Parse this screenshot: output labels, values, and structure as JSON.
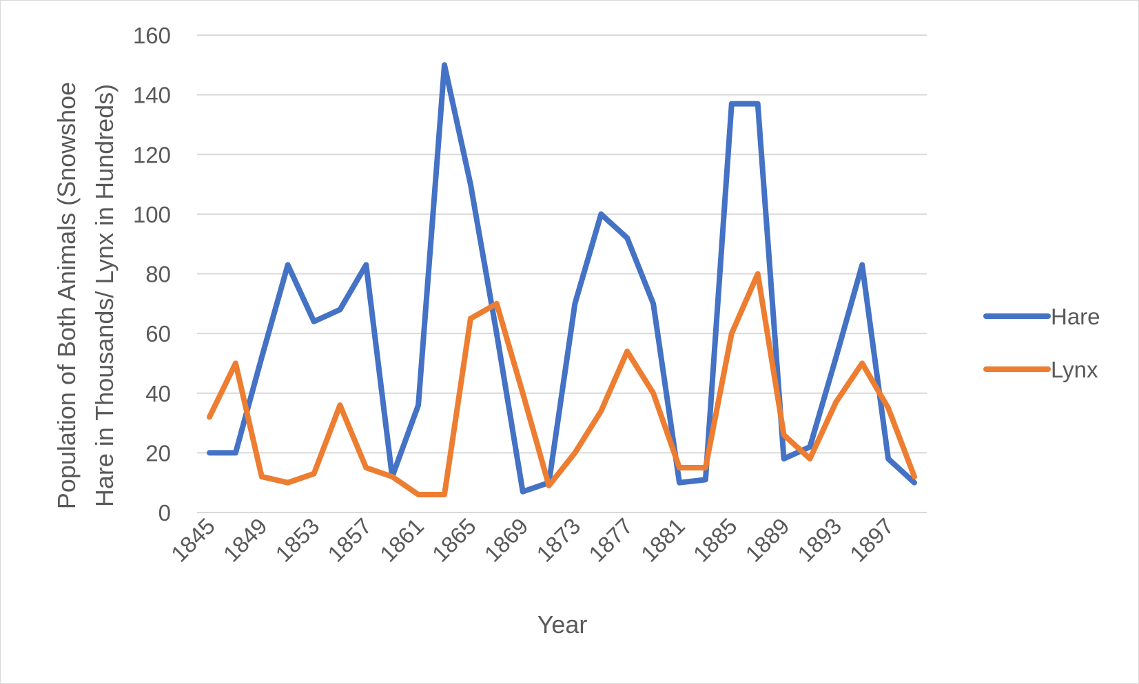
{
  "chart_data": {
    "type": "line",
    "title": "",
    "xlabel": "Year",
    "ylabel_lines": [
      "Population of Both Animals (Snowshoe",
      "Hare in Thousands/ Lynx in Hundreds)"
    ],
    "x": [
      1845,
      1847,
      1849,
      1851,
      1853,
      1855,
      1857,
      1859,
      1861,
      1863,
      1865,
      1867,
      1869,
      1871,
      1873,
      1875,
      1877,
      1879,
      1881,
      1883,
      1885,
      1887,
      1889,
      1891,
      1893,
      1895,
      1897,
      1899
    ],
    "x_tick_labels": [
      "1845",
      "1849",
      "1853",
      "1857",
      "1861",
      "1865",
      "1869",
      "1873",
      "1877",
      "1881",
      "1885",
      "1889",
      "1893",
      "1897"
    ],
    "y_ticks": [
      "0",
      "20",
      "40",
      "60",
      "80",
      "100",
      "120",
      "140",
      "160"
    ],
    "ylim": [
      0,
      160
    ],
    "grid": true,
    "legend_position": "right",
    "series": [
      {
        "name": "Hare",
        "color": "#4472C4",
        "values": [
          20,
          20,
          52,
          83,
          64,
          68,
          83,
          12,
          36,
          150,
          110,
          60,
          7,
          10,
          70,
          100,
          92,
          70,
          10,
          11,
          137,
          137,
          18,
          22,
          52,
          83,
          18,
          10
        ]
      },
      {
        "name": "Lynx",
        "color": "#ED7D31",
        "values": [
          32,
          50,
          12,
          10,
          13,
          36,
          15,
          12,
          6,
          6,
          65,
          70,
          40,
          9,
          20,
          34,
          54,
          40,
          15,
          15,
          60,
          80,
          26,
          18,
          37,
          50,
          35,
          12
        ]
      }
    ]
  }
}
